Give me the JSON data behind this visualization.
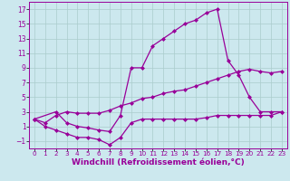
{
  "bg_color": "#cce8ee",
  "line_color": "#990099",
  "grid_color": "#aacccc",
  "xlabel": "Windchill (Refroidissement éolien,°C)",
  "xlabel_fontsize": 6.5,
  "xtick_fontsize": 5.2,
  "ytick_fontsize": 5.5,
  "xlim": [
    -0.5,
    23.5
  ],
  "ylim": [
    -2,
    18
  ],
  "yticks": [
    -1,
    1,
    3,
    5,
    7,
    9,
    11,
    13,
    15,
    17
  ],
  "xticks": [
    0,
    1,
    2,
    3,
    4,
    5,
    6,
    7,
    8,
    9,
    10,
    11,
    12,
    13,
    14,
    15,
    16,
    17,
    18,
    19,
    20,
    21,
    22,
    23
  ],
  "curve1_x": [
    0,
    2,
    3,
    4,
    5,
    6,
    7,
    8,
    9,
    10,
    11,
    12,
    13,
    14,
    15,
    16,
    17,
    18,
    19,
    20,
    21,
    22,
    23
  ],
  "curve1_y": [
    2,
    3,
    1.5,
    1.0,
    0.8,
    0.5,
    0.3,
    2.5,
    9,
    9,
    12,
    13,
    14,
    15,
    15.5,
    16.5,
    17,
    10,
    8,
    5,
    3,
    3,
    3
  ],
  "curve2_x": [
    0,
    1,
    2,
    3,
    4,
    5,
    6,
    7,
    8,
    9,
    10,
    11,
    12,
    13,
    14,
    15,
    16,
    17,
    18,
    19,
    20,
    21,
    22,
    23
  ],
  "curve2_y": [
    2,
    1.5,
    2.5,
    3.0,
    2.8,
    2.8,
    2.8,
    3.2,
    3.8,
    4.2,
    4.8,
    5.0,
    5.5,
    5.8,
    6.0,
    6.5,
    7.0,
    7.5,
    8.0,
    8.5,
    8.8,
    8.5,
    8.3,
    8.5
  ],
  "curve3_x": [
    0,
    1,
    2,
    3,
    4,
    5,
    6,
    7,
    8,
    9,
    10,
    11,
    12,
    13,
    14,
    15,
    16,
    17,
    18,
    19,
    20,
    21,
    22,
    23
  ],
  "curve3_y": [
    2,
    1.0,
    0.5,
    0.0,
    -0.5,
    -0.5,
    -0.8,
    -1.5,
    -0.5,
    1.5,
    2.0,
    2.0,
    2.0,
    2.0,
    2.0,
    2.0,
    2.2,
    2.5,
    2.5,
    2.5,
    2.5,
    2.5,
    2.5,
    3.0
  ]
}
